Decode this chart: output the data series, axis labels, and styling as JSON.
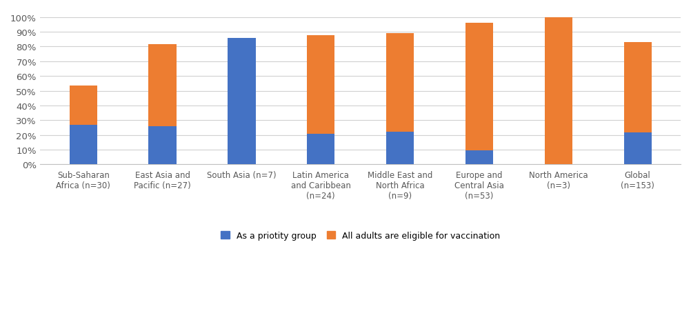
{
  "categories": [
    "Sub-Saharan\nAfrica (n=30)",
    "East Asia and\nPacific (n=27)",
    "South Asia (n=7)",
    "Latin America\nand Caribbean\n(n=24)",
    "Middle East and\nNorth Africa\n(n=9)",
    "Europe and\nCentral Asia\n(n=53)",
    "North America\n(n=3)",
    "Global\n(n=153)"
  ],
  "blue_values": [
    0.267,
    0.259,
    0.857,
    0.208,
    0.222,
    0.094,
    0.0,
    0.216
  ],
  "orange_values": [
    0.267,
    0.556,
    0.0,
    0.667,
    0.667,
    0.868,
    1.0,
    0.614
  ],
  "blue_color": "#4472C4",
  "orange_color": "#ED7D31",
  "legend_blue": "As a priotity group",
  "legend_orange": "All adults are eligible for vaccination",
  "yticks": [
    0.0,
    0.1,
    0.2,
    0.3,
    0.4,
    0.5,
    0.6,
    0.7,
    0.8,
    0.9,
    1.0
  ],
  "ytick_labels": [
    "0%",
    "10%",
    "20%",
    "30%",
    "40%",
    "50%",
    "60%",
    "70%",
    "80%",
    "90%",
    "100%"
  ],
  "ylim": [
    0,
    1.05
  ],
  "grid_color": "#D0D0D0",
  "background_color": "#FFFFFF",
  "bar_width": 0.35,
  "tick_color": "#595959",
  "spine_color": "#C0C0C0",
  "label_fontsize": 8.5,
  "ytick_fontsize": 9.5,
  "legend_fontsize": 9
}
